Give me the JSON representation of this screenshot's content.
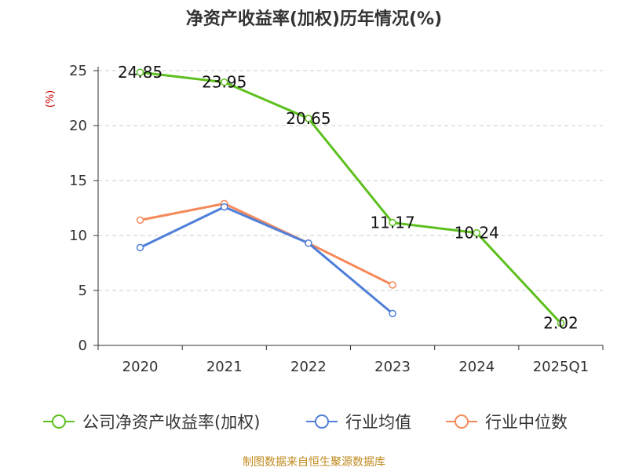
{
  "chart_data": {
    "type": "line",
    "title": "净资产收益率(加权)历年情况(%)",
    "ylabel": "(%)",
    "xlabel": "",
    "ylim": [
      0,
      25
    ],
    "yticks": [
      0,
      5,
      10,
      15,
      20,
      25
    ],
    "grid": true,
    "legend_position": "bottom",
    "categories": [
      "2020",
      "2021",
      "2022",
      "2023",
      "2024",
      "2025Q1"
    ],
    "series": [
      {
        "name": "公司净资产收益率(加权)",
        "color": "#5dc01e",
        "values": [
          24.85,
          23.95,
          20.65,
          11.17,
          10.24,
          2.02
        ],
        "value_labels": [
          "24.85",
          "23.95",
          "20.65",
          "11.17",
          "10.24",
          "2.02"
        ],
        "show_labels": true
      },
      {
        "name": "行业均值",
        "color": "#4f7fd8",
        "values": [
          8.9,
          12.6,
          9.3,
          2.9,
          null,
          null
        ],
        "show_labels": false
      },
      {
        "name": "行业中位数",
        "color": "#f5895a",
        "values": [
          11.4,
          12.9,
          9.3,
          5.5,
          null,
          null
        ],
        "show_labels": false
      }
    ]
  },
  "source": {
    "text": "制图数据来自恒生聚源数据库",
    "color": "#c08a1e"
  },
  "ylabel_color": "#cc0000"
}
